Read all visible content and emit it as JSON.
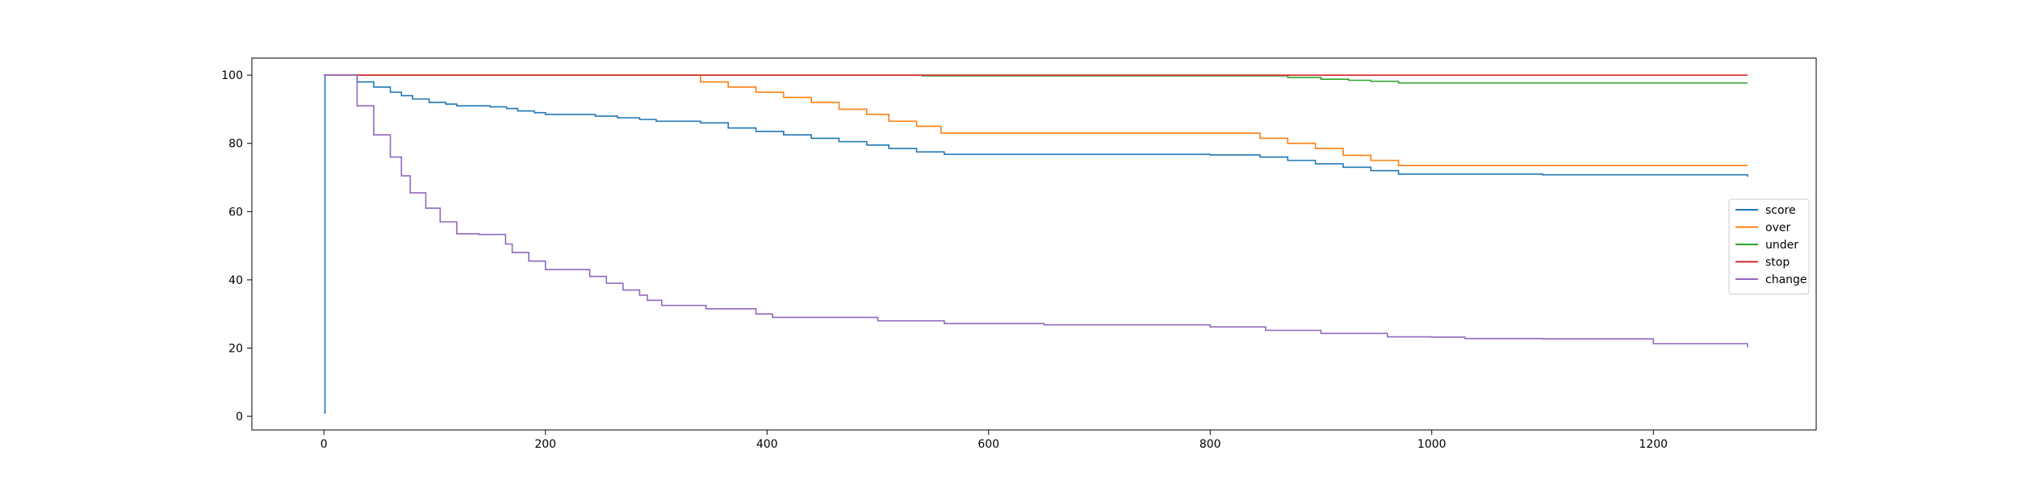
{
  "chart_data": {
    "type": "line",
    "title": "",
    "xlabel": "",
    "ylabel": "",
    "xlim": [
      -65,
      1347
    ],
    "ylim": [
      -4,
      105
    ],
    "xticks": [
      0,
      200,
      400,
      600,
      800,
      1000,
      1200
    ],
    "yticks": [
      0,
      20,
      40,
      60,
      80,
      100
    ],
    "grid": false,
    "legend_position": "center-right",
    "series": [
      {
        "name": "score",
        "color": "#1f77b4",
        "step": true,
        "points": [
          [
            0,
            1
          ],
          [
            1,
            100
          ],
          [
            30,
            100
          ],
          [
            30,
            98
          ],
          [
            45,
            96.5
          ],
          [
            60,
            95
          ],
          [
            70,
            94
          ],
          [
            80,
            93
          ],
          [
            95,
            92
          ],
          [
            110,
            91.5
          ],
          [
            120,
            91
          ],
          [
            150,
            90.7
          ],
          [
            165,
            90.2
          ],
          [
            175,
            89.5
          ],
          [
            190,
            89
          ],
          [
            200,
            88.5
          ],
          [
            245,
            88
          ],
          [
            265,
            87.5
          ],
          [
            285,
            87
          ],
          [
            300,
            86.5
          ],
          [
            340,
            86
          ],
          [
            365,
            84.5
          ],
          [
            390,
            83.5
          ],
          [
            415,
            82.5
          ],
          [
            440,
            81.5
          ],
          [
            465,
            80.5
          ],
          [
            490,
            79.5
          ],
          [
            510,
            78.5
          ],
          [
            535,
            77.5
          ],
          [
            560,
            76.8
          ],
          [
            650,
            76.8
          ],
          [
            800,
            76.6
          ],
          [
            845,
            76
          ],
          [
            870,
            75
          ],
          [
            895,
            74
          ],
          [
            920,
            73
          ],
          [
            945,
            72
          ],
          [
            970,
            71
          ],
          [
            1100,
            70.8
          ],
          [
            1285,
            70.2
          ]
        ]
      },
      {
        "name": "over",
        "color": "#ff7f0e",
        "step": true,
        "points": [
          [
            0,
            100
          ],
          [
            340,
            100
          ],
          [
            340,
            98
          ],
          [
            365,
            96.5
          ],
          [
            390,
            95
          ],
          [
            415,
            93.5
          ],
          [
            440,
            92
          ],
          [
            465,
            90
          ],
          [
            490,
            88.5
          ],
          [
            510,
            86.5
          ],
          [
            535,
            85
          ],
          [
            557,
            83
          ],
          [
            845,
            83
          ],
          [
            845,
            81.5
          ],
          [
            870,
            80
          ],
          [
            895,
            78.5
          ],
          [
            920,
            76.5
          ],
          [
            945,
            75
          ],
          [
            970,
            73.5
          ],
          [
            1285,
            73.5
          ]
        ]
      },
      {
        "name": "under",
        "color": "#2ca02c",
        "step": true,
        "points": [
          [
            0,
            100
          ],
          [
            540,
            100
          ],
          [
            540,
            99.8
          ],
          [
            870,
            99.8
          ],
          [
            870,
            99.3
          ],
          [
            900,
            98.8
          ],
          [
            925,
            98.5
          ],
          [
            945,
            98.2
          ],
          [
            970,
            97.7
          ],
          [
            1285,
            97.7
          ]
        ]
      },
      {
        "name": "stop",
        "color": "#d62728",
        "step": true,
        "points": [
          [
            0,
            100
          ],
          [
            1285,
            100
          ]
        ]
      },
      {
        "name": "change",
        "color": "#9467bd",
        "step": true,
        "points": [
          [
            0,
            100
          ],
          [
            30,
            100
          ],
          [
            30,
            91
          ],
          [
            45,
            82.5
          ],
          [
            60,
            76
          ],
          [
            70,
            70.5
          ],
          [
            78,
            65.5
          ],
          [
            92,
            61
          ],
          [
            105,
            57
          ],
          [
            120,
            53.5
          ],
          [
            140,
            53.3
          ],
          [
            164,
            53.3
          ],
          [
            164,
            50.5
          ],
          [
            170,
            48
          ],
          [
            185,
            45.5
          ],
          [
            200,
            43
          ],
          [
            240,
            43
          ],
          [
            240,
            41
          ],
          [
            255,
            39
          ],
          [
            270,
            37
          ],
          [
            285,
            35.5
          ],
          [
            292,
            34
          ],
          [
            305,
            32.5
          ],
          [
            345,
            31.5
          ],
          [
            390,
            31.5
          ],
          [
            390,
            30
          ],
          [
            405,
            29
          ],
          [
            450,
            29
          ],
          [
            500,
            28
          ],
          [
            560,
            27.2
          ],
          [
            650,
            26.8
          ],
          [
            800,
            26.2
          ],
          [
            850,
            25.2
          ],
          [
            900,
            24.3
          ],
          [
            960,
            23.3
          ],
          [
            1000,
            23.2
          ],
          [
            1030,
            22.8
          ],
          [
            1100,
            22.7
          ],
          [
            1200,
            21.3
          ],
          [
            1285,
            20.2
          ]
        ]
      }
    ]
  }
}
